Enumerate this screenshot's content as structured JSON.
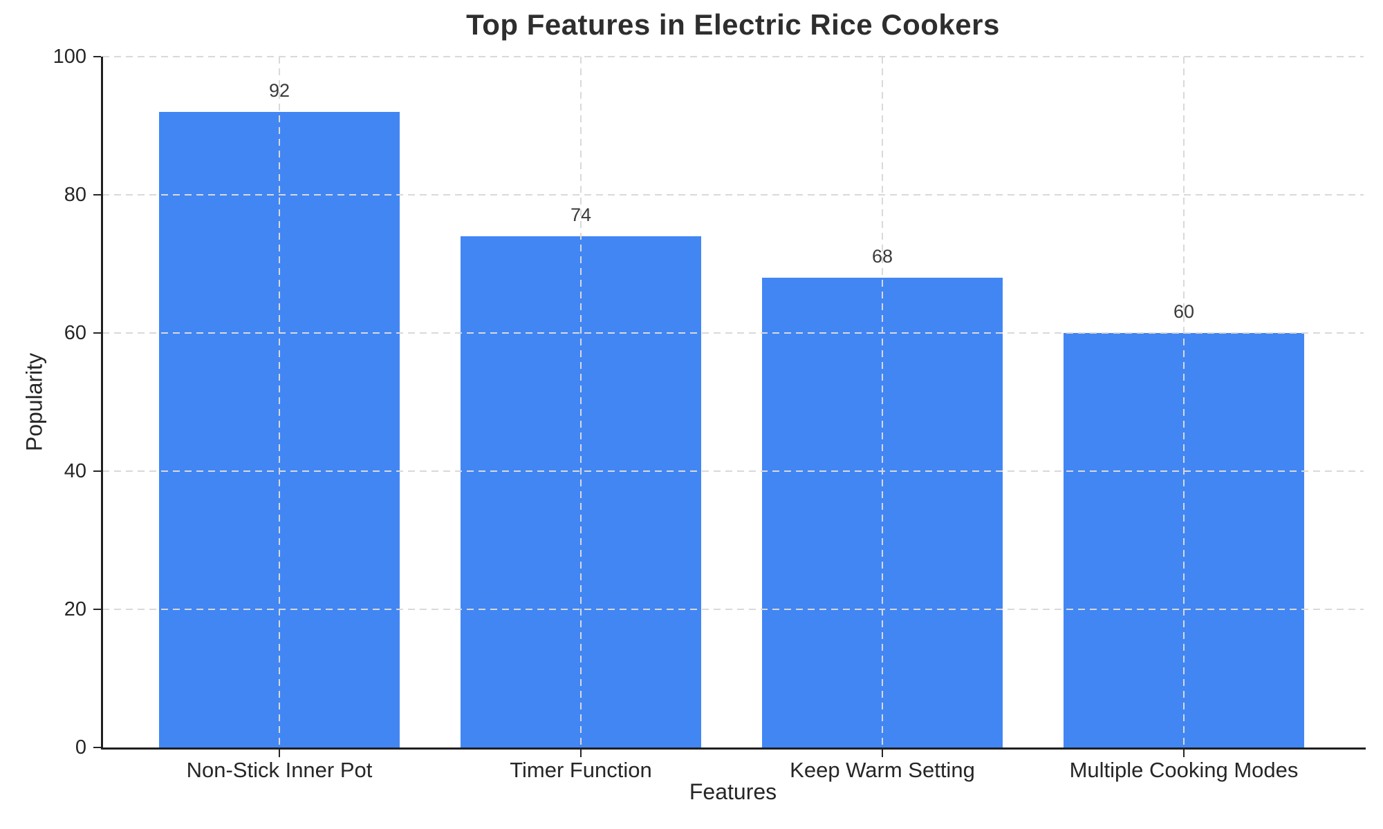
{
  "chart_data": {
    "type": "bar",
    "title": "Top Features in Electric Rice Cookers",
    "xlabel": "Features",
    "ylabel": "Popularity",
    "categories": [
      "Non-Stick Inner Pot",
      "Timer Function",
      "Keep Warm Setting",
      "Multiple Cooking Modes"
    ],
    "values": [
      92,
      74,
      68,
      60
    ],
    "value_labels": [
      "92",
      "74",
      "68",
      "60"
    ],
    "ylim": [
      0,
      100
    ],
    "yticks": [
      0,
      20,
      40,
      60,
      80,
      100
    ],
    "bar_color": "#4286f4",
    "grid": "dashed-both-axes",
    "grid_color": "#d9d9d9",
    "legend_position": "none"
  }
}
